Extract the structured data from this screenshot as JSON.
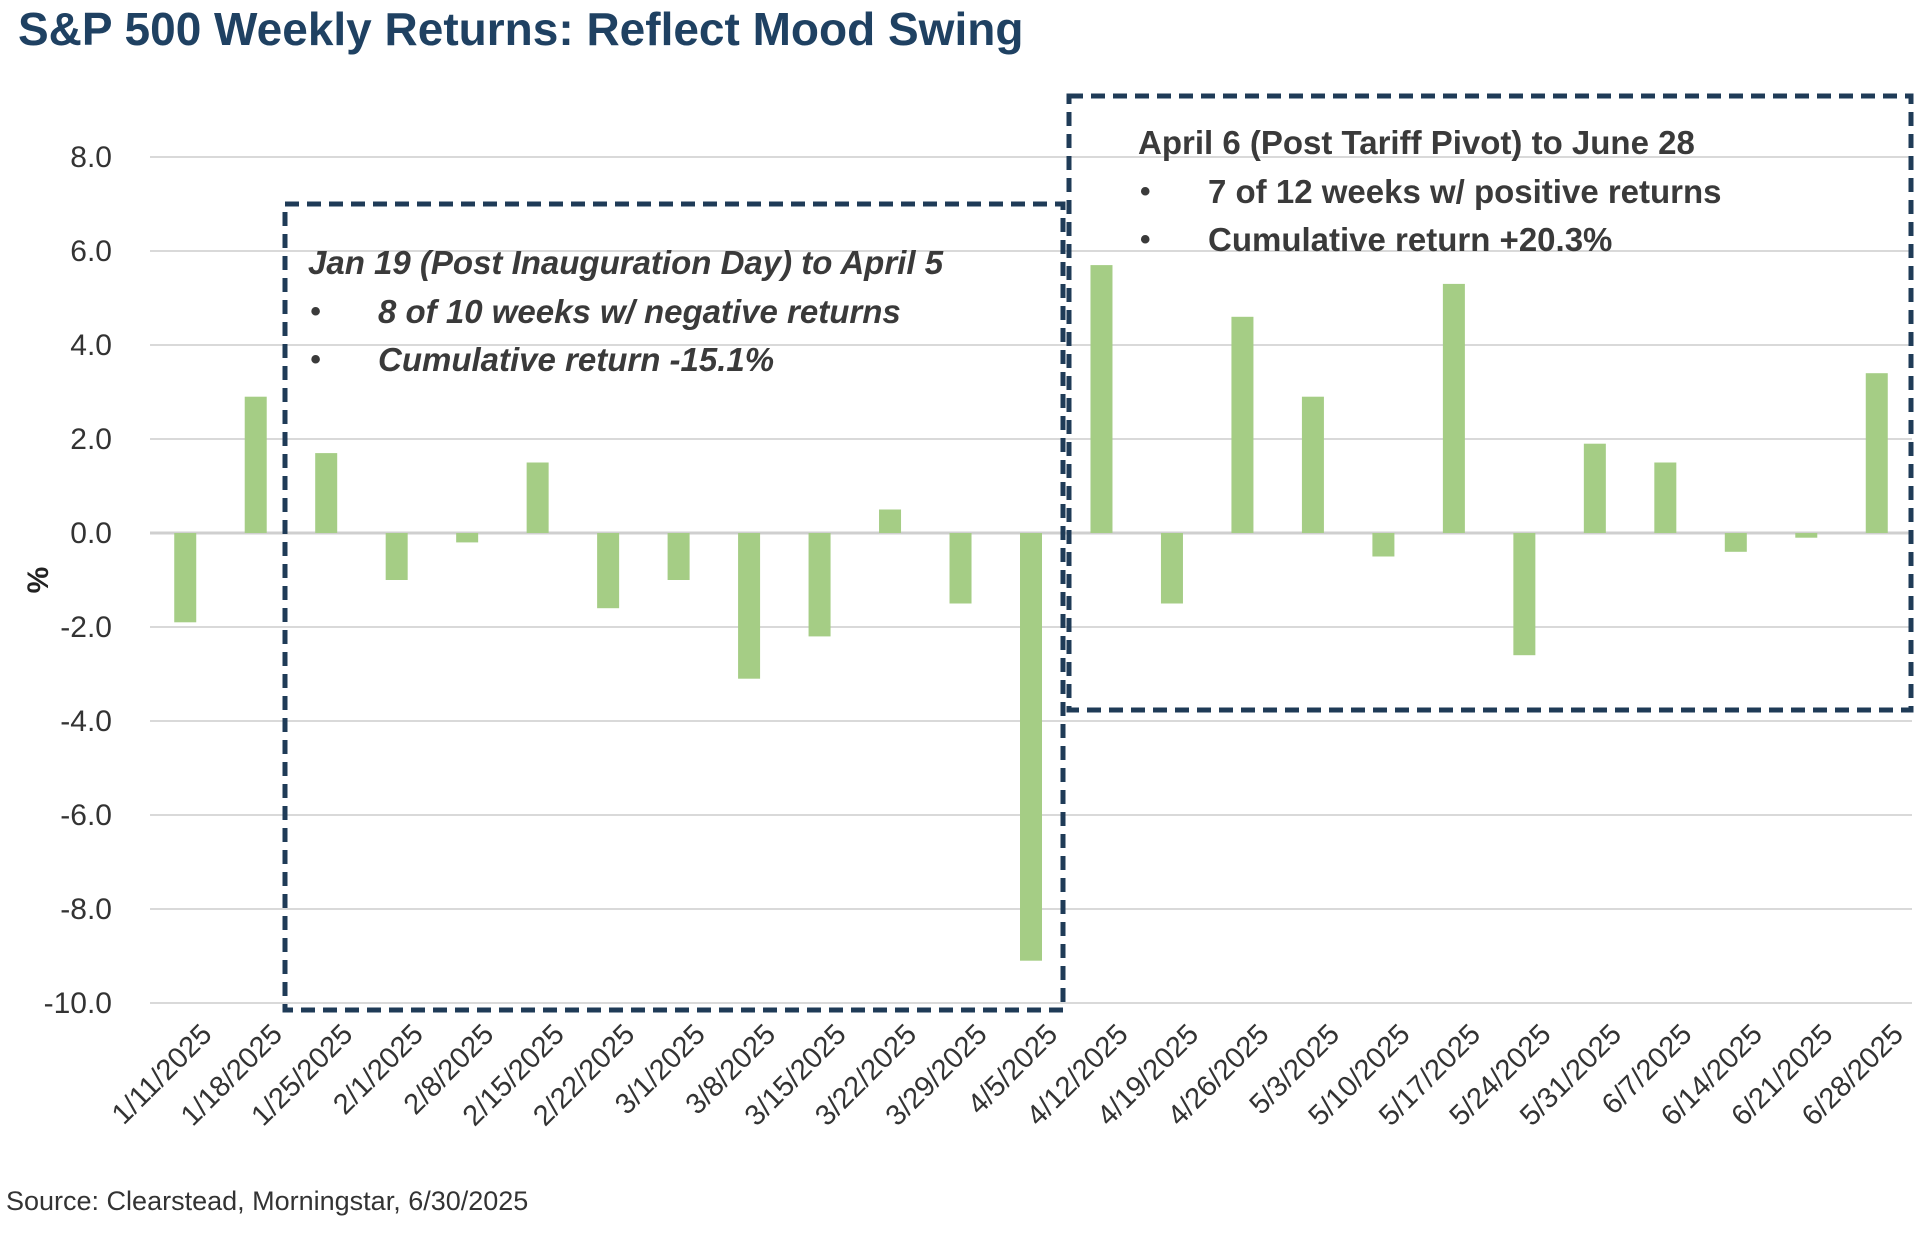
{
  "title": "S&P 500 Weekly Returns: Reflect Mood Swing",
  "source": "Source: Clearstead, Morningstar, 6/30/2025",
  "colors": {
    "bar": "#a5cd85",
    "box": "#1f3b57",
    "title": "#1f4162",
    "grid": "#d9d9d9"
  },
  "annotations": [
    {
      "head": "Jan 19 (Post Inauguration Day) to April 5",
      "bullets": [
        "8 of 10 weeks w/ negative returns",
        "Cumulative return -15.1%"
      ]
    },
    {
      "head": "April 6 (Post Tariff Pivot) to June 28",
      "bullets": [
        "7 of 12 weeks w/ positive returns",
        "Cumulative return +20.3%"
      ]
    }
  ],
  "chart_data": {
    "type": "bar",
    "title": "S&P 500 Weekly Returns: Reflect Mood Swing",
    "xlabel": "",
    "ylabel": "%",
    "ylim": [
      -10,
      8
    ],
    "yticks": [
      8,
      6,
      4,
      2,
      0,
      -2,
      -4,
      -6,
      -8,
      -10
    ],
    "ytick_labels": [
      "8.0",
      "6.0",
      "4.0",
      "2.0",
      "0.0",
      "-2.0",
      "-4.0",
      "-6.0",
      "-8.0",
      "-10.0"
    ],
    "grid": true,
    "categories": [
      "1/11/2025",
      "1/18/2025",
      "1/25/2025",
      "2/1/2025",
      "2/8/2025",
      "2/15/2025",
      "2/22/2025",
      "3/1/2025",
      "3/8/2025",
      "3/15/2025",
      "3/22/2025",
      "3/29/2025",
      "4/5/2025",
      "4/12/2025",
      "4/19/2025",
      "4/26/2025",
      "5/3/2025",
      "5/10/2025",
      "5/17/2025",
      "5/24/2025",
      "5/31/2025",
      "6/7/2025",
      "6/14/2025",
      "6/21/2025",
      "6/28/2025"
    ],
    "values": [
      -1.9,
      2.9,
      1.7,
      -1.0,
      -0.2,
      1.5,
      -1.6,
      -1.0,
      -3.1,
      -2.2,
      0.5,
      -1.5,
      -9.1,
      5.7,
      -1.5,
      4.6,
      2.9,
      -0.5,
      5.3,
      -2.6,
      1.9,
      1.5,
      -0.4,
      -0.1,
      3.4
    ]
  }
}
